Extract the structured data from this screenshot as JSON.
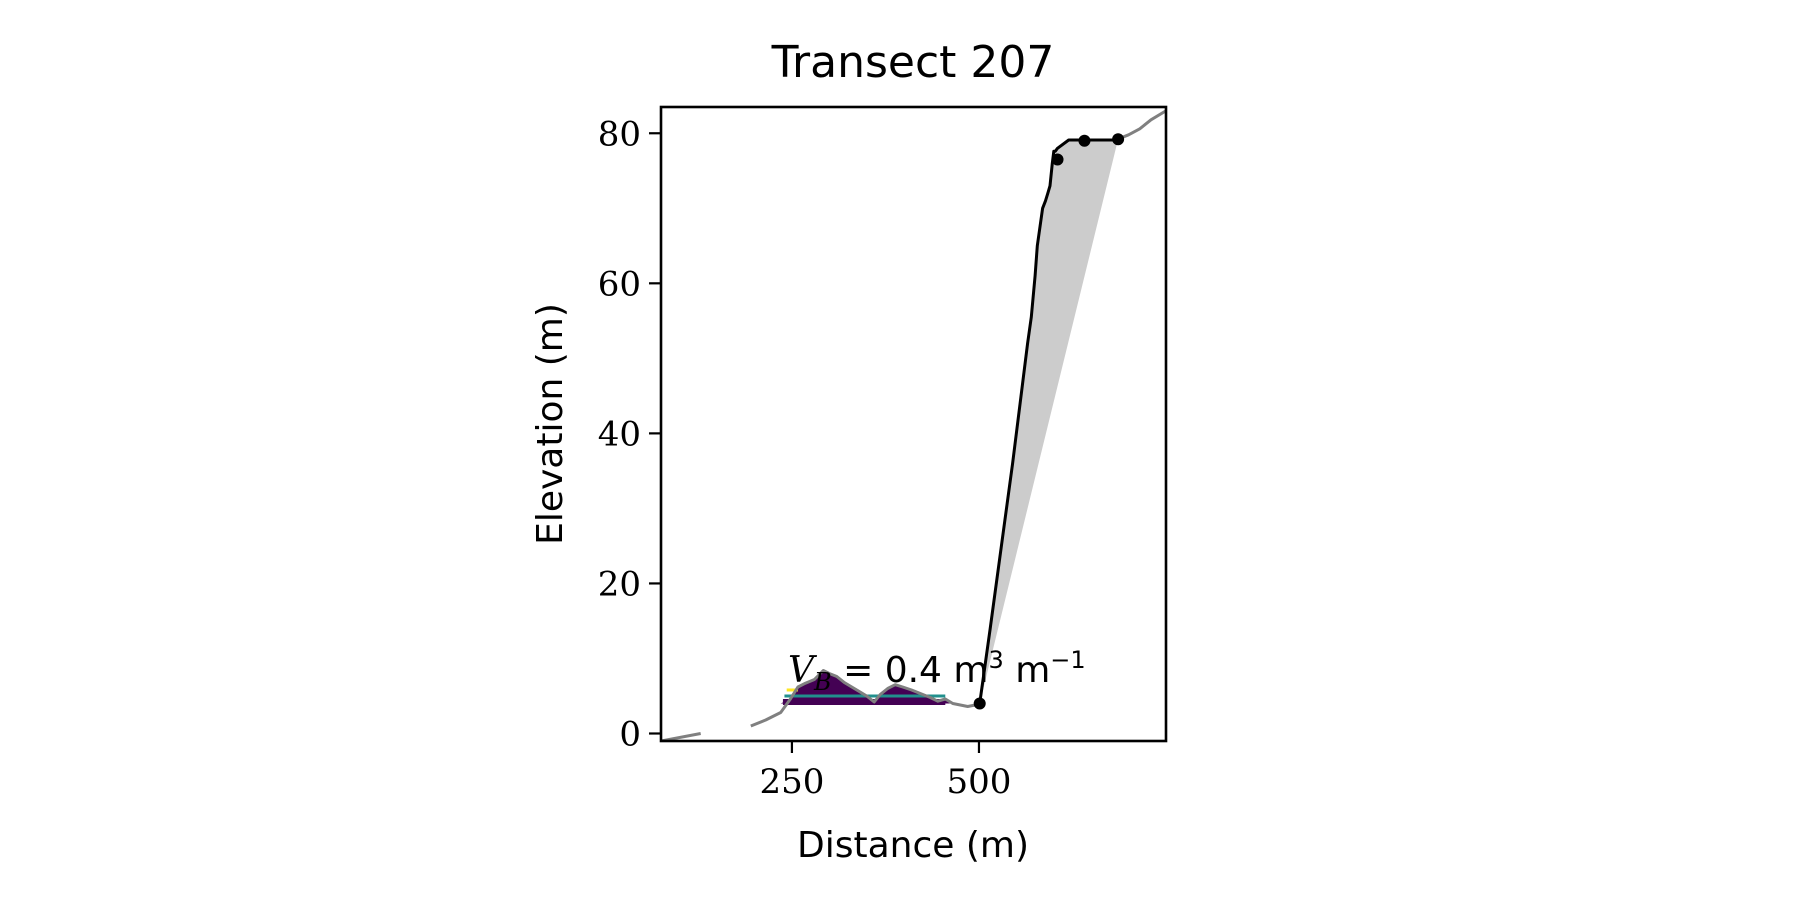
{
  "chart_data": {
    "type": "line",
    "title": "Transect 207",
    "xlabel": "Distance (m)",
    "ylabel": "Elevation (m)",
    "xlim": [
      75,
      750
    ],
    "ylim": [
      -1,
      83.5
    ],
    "xticks": [
      250,
      500
    ],
    "xtick_labels": [
      "250",
      "500"
    ],
    "yticks": [
      0,
      20,
      40,
      60,
      80
    ],
    "ytick_labels": [
      "0",
      "20",
      "40",
      "60",
      "80"
    ],
    "grid": false,
    "legend": "none",
    "annotation": {
      "text_parts": [
        "V",
        "B",
        " = 0.4 m",
        "3",
        " m",
        "−1"
      ],
      "position": [
        248,
        5.5
      ]
    },
    "colors": {
      "profile": "#808080",
      "cliff_line": "#000000",
      "cliff_fill": "#cccccc",
      "dune_fill_high": "#21908d",
      "dune_fill_low": "#440154",
      "level_yellow": "#fde725",
      "level_teal": "#21908d",
      "level_purple": "#440154"
    },
    "series": [
      {
        "role": "profile",
        "segments": [
          {
            "x": [
              75,
              128
            ],
            "y": [
              -1,
              0
            ]
          },
          {
            "x": [
              195,
              215,
              235,
              248,
              258,
              268,
              280,
              292,
              300,
              310,
              320,
              330,
              340,
              350,
              360,
              368,
              378,
              388,
              398,
              410,
              420,
              435,
              445,
              455,
              465,
              475,
              485,
              495,
              501
            ],
            "y": [
              1.0,
              1.8,
              2.8,
              4.6,
              6.2,
              6.7,
              7.2,
              8.4,
              8.0,
              7.6,
              6.8,
              6.2,
              5.6,
              5.0,
              4.2,
              5.2,
              6.0,
              6.5,
              6.2,
              5.8,
              5.4,
              4.8,
              4.3,
              4.6,
              4.0,
              3.8,
              3.6,
              3.8,
              4.0
            ]
          },
          {
            "x": [
              685,
              700,
              715,
              730,
              750
            ],
            "y": [
              79.2,
              79.8,
              80.6,
              81.8,
              83.0
            ]
          }
        ]
      },
      {
        "role": "cliff",
        "x": [
          501,
          515,
          530,
          545,
          555,
          565,
          570,
          575,
          578,
          585,
          589,
          592,
          595,
          598,
          600,
          602,
          605,
          620,
          640,
          660,
          670,
          680,
          686
        ],
        "y": [
          4,
          14,
          25,
          36,
          44,
          52,
          55.5,
          61,
          65,
          70,
          71,
          72,
          73,
          76,
          77.6,
          77.6,
          78,
          79.1,
          79.1,
          79.1,
          79.1,
          79.1,
          79.2
        ]
      }
    ],
    "markers": [
      {
        "x": 501,
        "y": 4
      },
      {
        "x": 605,
        "y": 76.5
      },
      {
        "x": 641,
        "y": 79
      },
      {
        "x": 686,
        "y": 79.2
      }
    ],
    "cliff_fill_lower": {
      "x": [
        501,
        686
      ],
      "y": [
        4,
        79.2
      ]
    },
    "dune_fills": [
      {
        "level": 5,
        "color_key": "dune_fill_high"
      },
      {
        "level": 4,
        "color_key": "dune_fill_low"
      }
    ],
    "levels": [
      {
        "y": 5.8,
        "x": [
          243,
          258
        ],
        "color_key": "level_yellow"
      },
      {
        "y": 5.0,
        "x": [
          240,
          455
        ],
        "color_key": "level_teal"
      },
      {
        "y": 4.2,
        "x": [
          238,
          455
        ],
        "color_key": "level_purple"
      }
    ]
  }
}
